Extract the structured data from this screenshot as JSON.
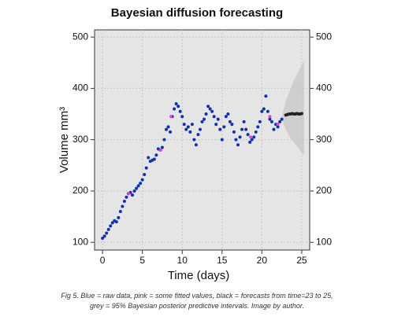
{
  "chart_data": {
    "type": "scatter",
    "title": "Bayesian diffusion forecasting",
    "x_label": "Time (days)",
    "y_label": "Volume mm³",
    "xlim": [
      -1,
      26
    ],
    "ylim": [
      85,
      514
    ],
    "xticks": [
      0,
      5,
      10,
      15,
      20,
      25
    ],
    "yticks": [
      100,
      200,
      300,
      400,
      500
    ],
    "grid": true,
    "band": {
      "color": "#c8c8c8",
      "x": [
        22.5,
        23,
        23.5,
        24,
        24.5,
        25,
        25.3
      ],
      "lower": [
        340,
        320,
        305,
        295,
        285,
        275,
        270
      ],
      "upper": [
        345,
        375,
        395,
        415,
        430,
        445,
        455
      ]
    },
    "series": [
      {
        "color": "#1030b0",
        "x": [
          0,
          0.25,
          0.5,
          0.75,
          1,
          1.25,
          1.5,
          1.75,
          2,
          2.25,
          2.5,
          2.75,
          3,
          3.25,
          3.5,
          3.75,
          4,
          4.25,
          4.5,
          4.75,
          5,
          5.25,
          5.5,
          5.75,
          6,
          6.25,
          6.5,
          6.75,
          7,
          7.25,
          7.5,
          7.75,
          8,
          8.25,
          8.5,
          8.75,
          9,
          9.25,
          9.5,
          9.75,
          10,
          10.25,
          10.5,
          10.75,
          11,
          11.25,
          11.5,
          11.75,
          12,
          12.25,
          12.5,
          12.75,
          13,
          13.25,
          13.5,
          13.75,
          14,
          14.25,
          14.5,
          14.75,
          15,
          15.25,
          15.5,
          15.75,
          16,
          16.25,
          16.5,
          16.75,
          17,
          17.25,
          17.5,
          17.75,
          18,
          18.25,
          18.5,
          18.75,
          19,
          19.25,
          19.5,
          19.75,
          20,
          20.25,
          20.5,
          20.75,
          21,
          21.25,
          21.5,
          21.75,
          22,
          22.25,
          22.5
        ],
        "values": [
          108,
          112,
          118,
          125,
          132,
          138,
          142,
          140,
          148,
          160,
          170,
          180,
          188,
          195,
          197,
          192,
          200,
          205,
          210,
          215,
          222,
          232,
          245,
          265,
          258,
          260,
          262,
          270,
          282,
          280,
          285,
          300,
          320,
          325,
          315,
          345,
          360,
          370,
          365,
          355,
          345,
          330,
          320,
          325,
          315,
          330,
          300,
          290,
          310,
          320,
          335,
          340,
          350,
          365,
          360,
          355,
          345,
          330,
          340,
          320,
          300,
          325,
          345,
          350,
          335,
          330,
          315,
          300,
          290,
          305,
          320,
          335,
          320,
          310,
          295,
          300,
          305,
          315,
          325,
          335,
          355,
          360,
          385,
          355,
          340,
          335,
          320,
          330,
          325,
          335,
          340
        ]
      },
      {
        "color": "#e040e0",
        "x": [
          3.3,
          7.3,
          8.6,
          18.6,
          21,
          22
        ],
        "values": [
          195,
          280,
          345,
          305,
          345,
          330
        ]
      },
      {
        "color": "#222222",
        "x": [
          23,
          23.2,
          23.4,
          23.6,
          23.8,
          24,
          24.2,
          24.4,
          24.6,
          24.8,
          25
        ],
        "values": [
          348,
          349,
          350,
          350,
          351,
          350,
          350,
          351,
          350,
          350,
          351
        ]
      }
    ],
    "caption": "Fig 5. Blue = raw data, pink = some fitted values, black = forecasts from time=23 to 25, grey = 95% Bayesian posterior predictive intervals. Image by author."
  }
}
